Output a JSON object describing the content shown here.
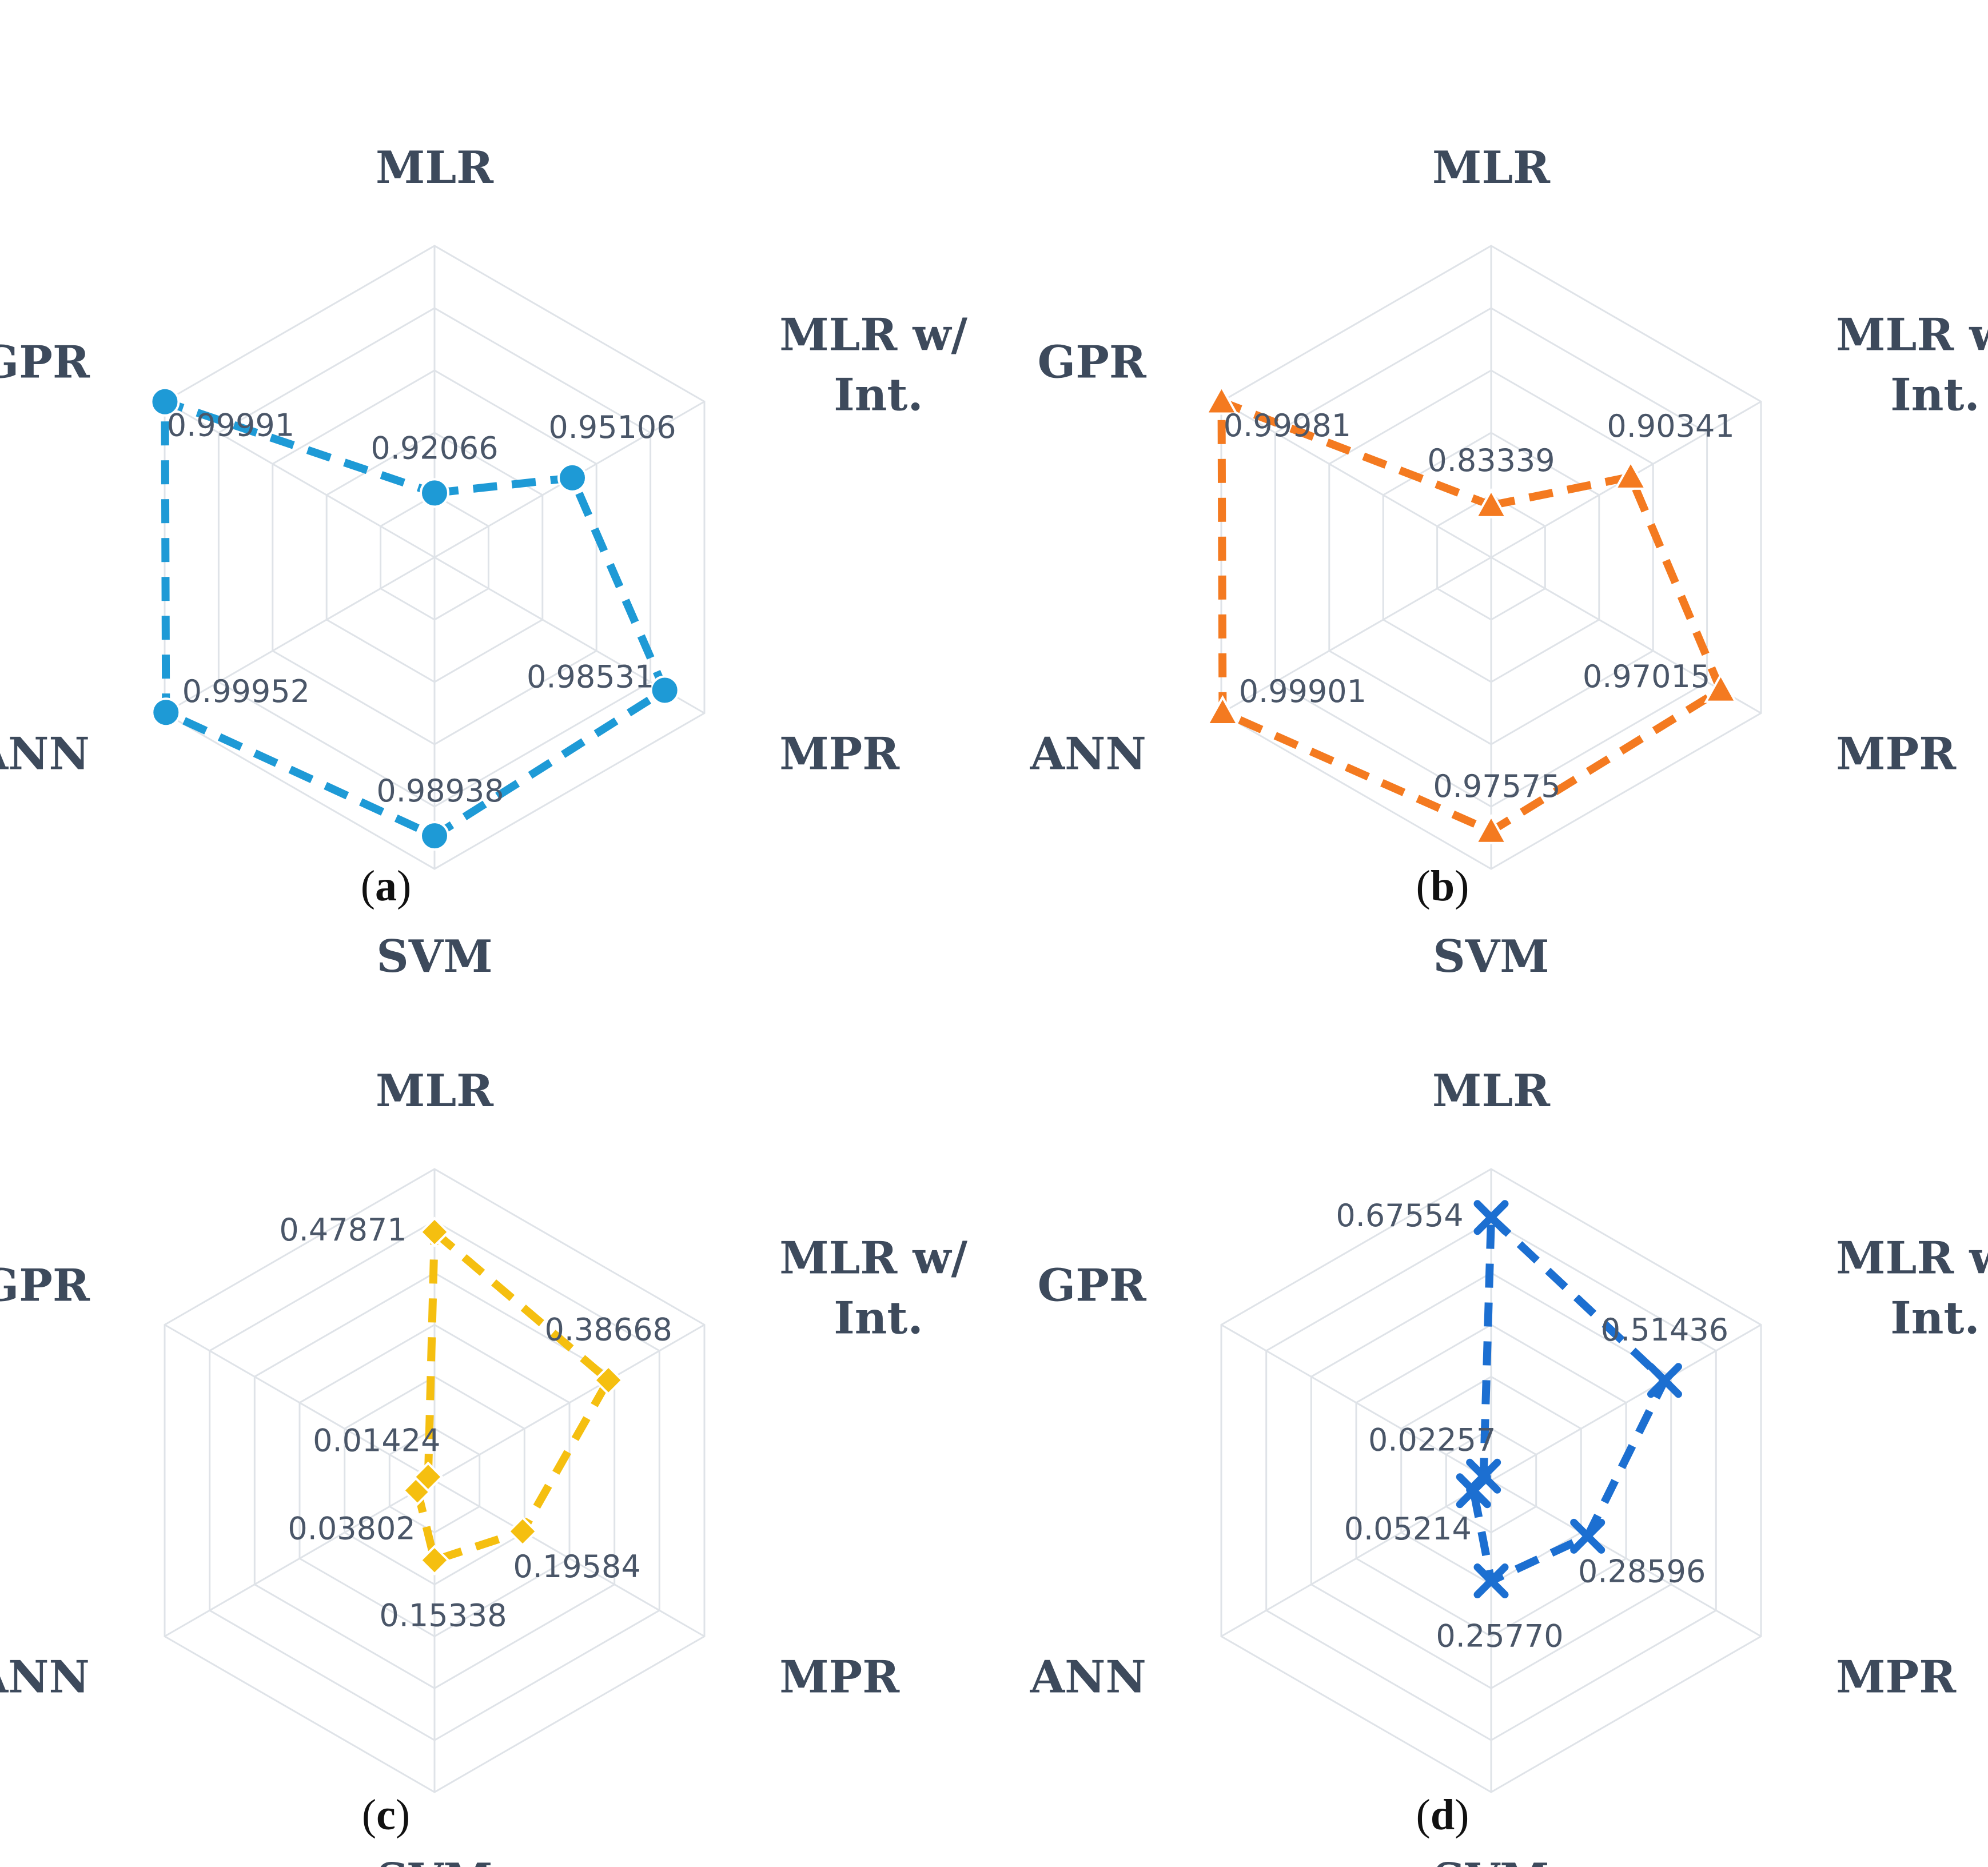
{
  "chart_data": [
    {
      "type": "radar",
      "panel": "a",
      "axes": [
        "MLR",
        "MLR w/ Int.",
        "MPR",
        "SVM",
        "ANN",
        "GPR"
      ],
      "values": [
        0.92066,
        0.95106,
        0.98531,
        0.98938,
        0.99952,
        0.99991
      ],
      "value_labels": [
        "0.92066",
        "0.95106",
        "0.98531",
        "0.98938",
        "0.99952",
        "0.99991"
      ],
      "rlim": [
        0.9,
        1.0
      ],
      "rings": 5,
      "color": "#1e9ad6",
      "marker": "circle"
    },
    {
      "type": "radar",
      "panel": "b",
      "axes": [
        "MLR",
        "MLR w/ Int.",
        "MPR",
        "SVM",
        "ANN",
        "GPR"
      ],
      "values": [
        0.83339,
        0.90341,
        0.97015,
        0.97575,
        0.99901,
        0.99981
      ],
      "value_labels": [
        "0.83339",
        "0.90341",
        "0.97015",
        "0.97575",
        "0.99901",
        "0.99981"
      ],
      "rlim": [
        0.8,
        1.0
      ],
      "rings": 5,
      "color": "#f47a20",
      "marker": "triangle"
    },
    {
      "type": "radar",
      "panel": "c",
      "axes": [
        "MLR",
        "MLR w/ Int.",
        "MPR",
        "SVM",
        "ANN",
        "GPR"
      ],
      "values": [
        0.47871,
        0.38668,
        0.19584,
        0.15338,
        0.03802,
        0.01424
      ],
      "value_labels": [
        "0.47871",
        "0.38668",
        "0.19584",
        "0.15338",
        "0.03802",
        "0.01424"
      ],
      "rlim": [
        0.0,
        0.6
      ],
      "rings": 6,
      "color": "#f5bf10",
      "marker": "diamond"
    },
    {
      "type": "radar",
      "panel": "d",
      "axes": [
        "MLR",
        "MLR w/ Int.",
        "MPR",
        "SVM",
        "ANN",
        "GPR"
      ],
      "values": [
        0.67554,
        0.51436,
        0.28596,
        0.2577,
        0.05214,
        0.02257
      ],
      "value_labels": [
        "0.67554",
        "0.51436",
        "0.28596",
        "0.25770",
        "0.05214",
        "0.02257"
      ],
      "rlim": [
        0.0,
        0.8
      ],
      "rings": 6,
      "color": "#1c6fd1",
      "marker": "x"
    }
  ]
}
